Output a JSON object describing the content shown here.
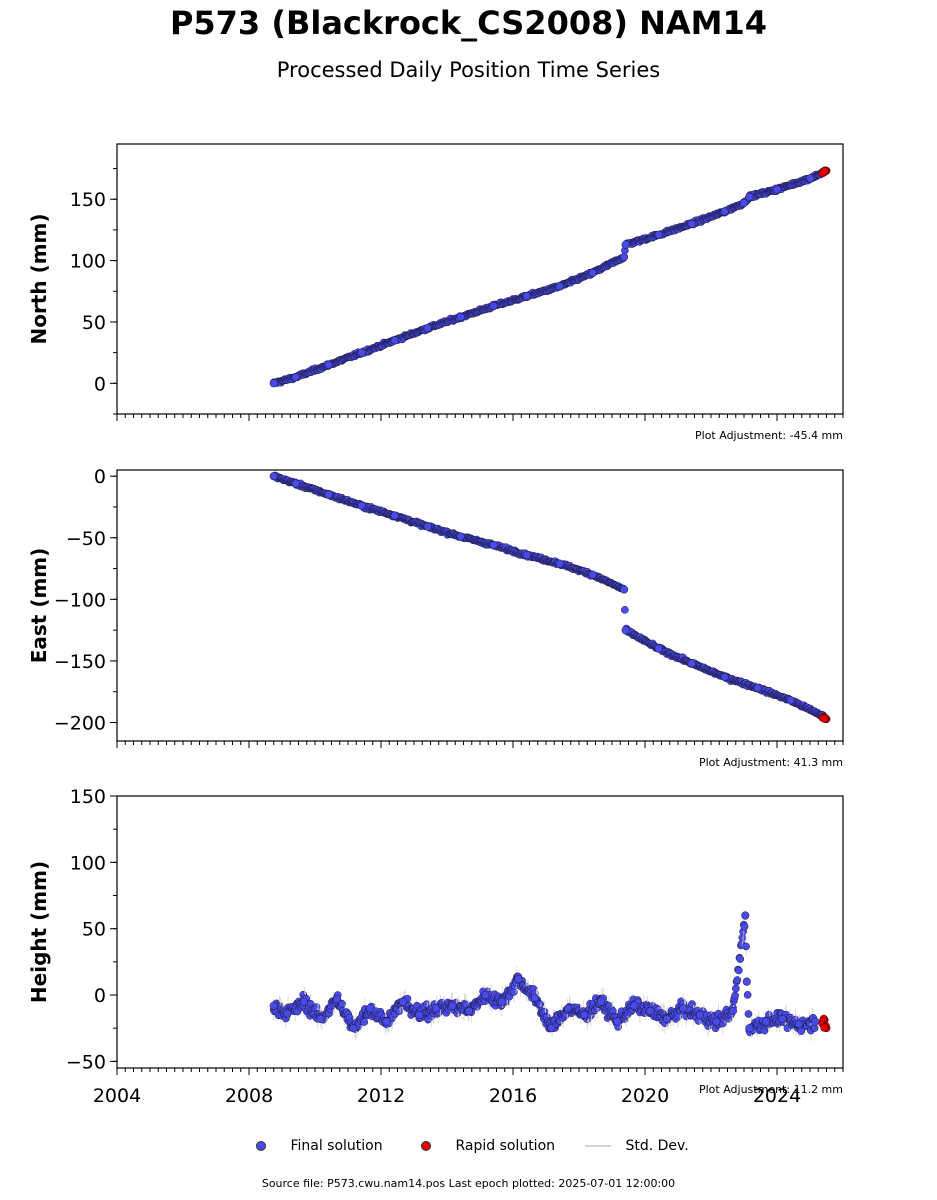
{
  "title": "P573 (Blackrock_CS2008) NAM14",
  "subtitle": "Processed Daily Position Time Series",
  "colors": {
    "final": "#4a4ae8",
    "rapid": "#e60000",
    "stddev": "#d3d3d3",
    "edge": "#1a1a40"
  },
  "legend": {
    "final": "Final solution",
    "rapid": "Rapid solution",
    "stddev": "Std. Dev."
  },
  "footer": "Source file: P573.cwu.nam14.pos  Last epoch plotted: 2025-07-01 12:00:00",
  "chart_data": [
    {
      "type": "scatter",
      "ylabel": "North (mm)",
      "xlim": [
        "2004-01-01",
        "2026-01-01"
      ],
      "ylim": [
        -25,
        195
      ],
      "yticks": [
        0,
        50,
        100,
        150
      ],
      "adjustment": "Plot Adjustment: -45.4 mm",
      "series": [
        {
          "name": "Final solution",
          "x": [
            "2008-10-01",
            "2009-06-01",
            "2010-06-01",
            "2011-06-01",
            "2012-06-01",
            "2013-06-01",
            "2014-06-01",
            "2015-06-01",
            "2016-06-01",
            "2017-06-01",
            "2018-06-01",
            "2019-05-15",
            "2019-06-01",
            "2020-06-01",
            "2021-06-01",
            "2022-06-01",
            "2023-01-01",
            "2023-03-01",
            "2024-01-01",
            "2025-01-01",
            "2025-06-01"
          ],
          "y": [
            0,
            5,
            15,
            25,
            35,
            45,
            54,
            63,
            71,
            79,
            90,
            103,
            113,
            121,
            130,
            140,
            147,
            152,
            158,
            167,
            172
          ]
        },
        {
          "name": "Rapid solution",
          "x": [
            "2025-06-10",
            "2025-07-01"
          ],
          "y": [
            172,
            173
          ]
        }
      ]
    },
    {
      "type": "scatter",
      "ylabel": "East (mm)",
      "xlim": [
        "2004-01-01",
        "2026-01-01"
      ],
      "ylim": [
        -215,
        5
      ],
      "yticks": [
        0,
        -50,
        -100,
        -150,
        -200
      ],
      "adjustment": "Plot Adjustment: 41.3 mm",
      "series": [
        {
          "name": "Final solution",
          "x": [
            "2008-10-01",
            "2009-06-01",
            "2010-06-01",
            "2011-06-01",
            "2012-06-01",
            "2013-06-01",
            "2014-06-01",
            "2015-06-01",
            "2016-06-01",
            "2017-06-01",
            "2018-06-01",
            "2019-05-15",
            "2019-06-01",
            "2020-06-01",
            "2021-06-01",
            "2022-06-01",
            "2023-06-01",
            "2024-06-01",
            "2025-06-01"
          ],
          "y": [
            0,
            -6,
            -15,
            -24,
            -32,
            -41,
            -49,
            -56,
            -64,
            -71,
            -80,
            -92,
            -125,
            -140,
            -152,
            -163,
            -172,
            -182,
            -195
          ]
        },
        {
          "name": "Rapid solution",
          "x": [
            "2025-06-10",
            "2025-07-01"
          ],
          "y": [
            -196,
            -197
          ]
        }
      ]
    },
    {
      "type": "scatter",
      "ylabel": "Height (mm)",
      "xlabel": "",
      "xlim": [
        "2004-01-01",
        "2026-01-01"
      ],
      "xticks": [
        "2004",
        "2008",
        "2012",
        "2016",
        "2020",
        "2024"
      ],
      "ylim": [
        -55,
        150
      ],
      "yticks": [
        -50,
        0,
        50,
        100,
        150
      ],
      "adjustment": "Plot Adjustment: 11.2 mm",
      "series": [
        {
          "name": "Final solution",
          "x": [
            "2008-10-01",
            "2009-03-01",
            "2009-09-01",
            "2010-03-01",
            "2010-09-01",
            "2011-03-01",
            "2011-09-01",
            "2012-03-01",
            "2012-09-01",
            "2013-03-01",
            "2013-09-01",
            "2014-03-01",
            "2014-09-01",
            "2015-03-01",
            "2015-09-01",
            "2016-03-01",
            "2016-09-01",
            "2017-03-01",
            "2017-09-01",
            "2018-03-01",
            "2018-09-01",
            "2019-03-01",
            "2019-09-01",
            "2020-03-01",
            "2020-09-01",
            "2021-03-01",
            "2021-09-01",
            "2022-03-01",
            "2022-09-01",
            "2023-01-15",
            "2023-02-01",
            "2023-03-01",
            "2023-09-01",
            "2024-03-01",
            "2024-09-01",
            "2025-03-01"
          ],
          "y": [
            -8,
            -14,
            -5,
            -18,
            -3,
            -25,
            -10,
            -20,
            -5,
            -15,
            -10,
            -8,
            -12,
            0,
            -5,
            12,
            -2,
            -25,
            -10,
            -15,
            -5,
            -20,
            -8,
            -12,
            -18,
            -10,
            -15,
            -20,
            -12,
            60,
            10,
            -25,
            -20,
            -18,
            -22,
            -20
          ]
        },
        {
          "name": "Rapid solution",
          "x": [
            "2025-06-10",
            "2025-07-01"
          ],
          "y": [
            -20,
            -22
          ]
        }
      ]
    }
  ]
}
